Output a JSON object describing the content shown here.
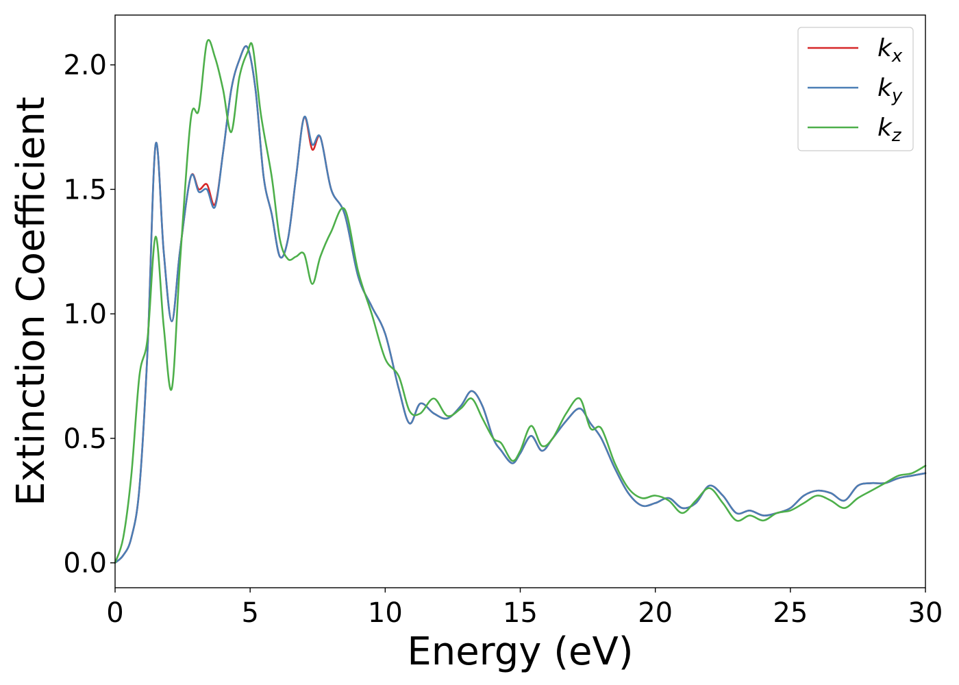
{
  "chart_data": {
    "type": "line",
    "title": "",
    "xlabel": "Energy (eV)",
    "ylabel": "Extinction Coefficient",
    "xlim": [
      0,
      30
    ],
    "ylim": [
      -0.1,
      2.2
    ],
    "xticks": [
      0,
      5,
      10,
      15,
      20,
      25,
      30
    ],
    "yticks": [
      0.0,
      0.5,
      1.0,
      1.5,
      2.0
    ],
    "xtick_labels": [
      "0",
      "5",
      "10",
      "15",
      "20",
      "25",
      "30"
    ],
    "ytick_labels": [
      "0.0",
      "0.5",
      "1.0",
      "1.5",
      "2.0"
    ],
    "grid": false,
    "legend_position": "top-right",
    "series": [
      {
        "name": "k_x",
        "label_main": "k",
        "label_sub": "x",
        "color": "#d62728",
        "x": [
          0,
          0.3,
          0.6,
          0.9,
          1.2,
          1.5,
          1.8,
          2.1,
          2.4,
          2.8,
          3.1,
          3.4,
          3.7,
          4.0,
          4.3,
          4.6,
          4.9,
          5.2,
          5.5,
          5.8,
          6.1,
          6.4,
          6.7,
          7.0,
          7.3,
          7.6,
          8.0,
          8.5,
          9.0,
          9.5,
          10.0,
          10.5,
          10.9,
          11.3,
          11.8,
          12.3,
          12.8,
          13.2,
          13.6,
          14.0,
          14.3,
          14.7,
          15.0,
          15.4,
          15.8,
          16.2,
          16.7,
          17.2,
          17.6,
          18.0,
          18.5,
          19.0,
          19.5,
          20.0,
          20.5,
          21.0,
          21.5,
          22.0,
          22.5,
          23.0,
          23.5,
          24.0,
          24.5,
          25.0,
          25.5,
          26.0,
          26.5,
          27.0,
          27.5,
          28.0,
          28.5,
          29.0,
          29.5,
          30.0
        ],
        "y": [
          0.0,
          0.03,
          0.1,
          0.3,
          0.85,
          1.68,
          1.25,
          0.97,
          1.25,
          1.55,
          1.5,
          1.52,
          1.44,
          1.65,
          1.9,
          2.02,
          2.07,
          1.9,
          1.55,
          1.4,
          1.23,
          1.3,
          1.55,
          1.79,
          1.66,
          1.71,
          1.5,
          1.4,
          1.15,
          1.03,
          0.92,
          0.7,
          0.56,
          0.64,
          0.6,
          0.58,
          0.63,
          0.69,
          0.63,
          0.5,
          0.45,
          0.4,
          0.44,
          0.51,
          0.45,
          0.5,
          0.57,
          0.62,
          0.56,
          0.5,
          0.38,
          0.28,
          0.23,
          0.24,
          0.26,
          0.22,
          0.24,
          0.31,
          0.27,
          0.2,
          0.21,
          0.19,
          0.2,
          0.22,
          0.27,
          0.29,
          0.28,
          0.25,
          0.31,
          0.32,
          0.32,
          0.34,
          0.35,
          0.36
        ]
      },
      {
        "name": "k_y",
        "label_main": "k",
        "label_sub": "y",
        "color": "#4a7eb5",
        "x": [
          0,
          0.3,
          0.6,
          0.9,
          1.2,
          1.5,
          1.8,
          2.1,
          2.4,
          2.8,
          3.1,
          3.4,
          3.7,
          4.0,
          4.3,
          4.6,
          4.9,
          5.2,
          5.5,
          5.8,
          6.1,
          6.4,
          6.7,
          7.0,
          7.3,
          7.6,
          8.0,
          8.5,
          9.0,
          9.5,
          10.0,
          10.5,
          10.9,
          11.3,
          11.8,
          12.3,
          12.8,
          13.2,
          13.6,
          14.0,
          14.3,
          14.7,
          15.0,
          15.4,
          15.8,
          16.2,
          16.7,
          17.2,
          17.6,
          18.0,
          18.5,
          19.0,
          19.5,
          20.0,
          20.5,
          21.0,
          21.5,
          22.0,
          22.5,
          23.0,
          23.5,
          24.0,
          24.5,
          25.0,
          25.5,
          26.0,
          26.5,
          27.0,
          27.5,
          28.0,
          28.5,
          29.0,
          29.5,
          30.0
        ],
        "y": [
          0.0,
          0.03,
          0.1,
          0.3,
          0.85,
          1.68,
          1.25,
          0.97,
          1.25,
          1.55,
          1.49,
          1.5,
          1.43,
          1.65,
          1.9,
          2.02,
          2.07,
          1.9,
          1.55,
          1.4,
          1.23,
          1.3,
          1.55,
          1.79,
          1.68,
          1.71,
          1.5,
          1.4,
          1.15,
          1.03,
          0.92,
          0.7,
          0.56,
          0.64,
          0.6,
          0.58,
          0.63,
          0.69,
          0.63,
          0.5,
          0.45,
          0.4,
          0.44,
          0.51,
          0.45,
          0.5,
          0.57,
          0.62,
          0.56,
          0.5,
          0.38,
          0.28,
          0.23,
          0.24,
          0.26,
          0.22,
          0.24,
          0.31,
          0.27,
          0.2,
          0.21,
          0.19,
          0.2,
          0.22,
          0.27,
          0.29,
          0.28,
          0.25,
          0.31,
          0.32,
          0.32,
          0.34,
          0.35,
          0.36
        ]
      },
      {
        "name": "k_z",
        "label_main": "k",
        "label_sub": "z",
        "color": "#4daf4a",
        "x": [
          0,
          0.3,
          0.6,
          0.9,
          1.2,
          1.5,
          1.8,
          2.1,
          2.4,
          2.8,
          3.1,
          3.4,
          3.7,
          4.0,
          4.3,
          4.6,
          4.9,
          5.1,
          5.4,
          5.8,
          6.1,
          6.4,
          6.7,
          7.0,
          7.3,
          7.6,
          8.0,
          8.5,
          9.0,
          9.5,
          10.0,
          10.5,
          10.9,
          11.3,
          11.8,
          12.3,
          12.8,
          13.2,
          13.6,
          14.0,
          14.3,
          14.7,
          15.0,
          15.4,
          15.8,
          16.2,
          16.7,
          17.2,
          17.6,
          18.0,
          18.5,
          19.0,
          19.5,
          20.0,
          20.5,
          21.0,
          21.5,
          22.0,
          22.5,
          23.0,
          23.5,
          24.0,
          24.5,
          25.0,
          25.5,
          26.0,
          26.5,
          27.0,
          27.5,
          28.0,
          28.5,
          29.0,
          29.5,
          30.0
        ],
        "y": [
          0.0,
          0.1,
          0.35,
          0.75,
          0.9,
          1.31,
          0.95,
          0.7,
          1.2,
          1.78,
          1.82,
          2.09,
          2.03,
          1.9,
          1.73,
          1.95,
          2.05,
          2.07,
          1.8,
          1.55,
          1.3,
          1.22,
          1.23,
          1.24,
          1.12,
          1.23,
          1.33,
          1.42,
          1.17,
          1.0,
          0.82,
          0.75,
          0.61,
          0.6,
          0.66,
          0.59,
          0.62,
          0.66,
          0.58,
          0.5,
          0.48,
          0.41,
          0.45,
          0.55,
          0.47,
          0.5,
          0.6,
          0.66,
          0.54,
          0.54,
          0.4,
          0.3,
          0.26,
          0.27,
          0.25,
          0.2,
          0.25,
          0.3,
          0.24,
          0.17,
          0.19,
          0.17,
          0.2,
          0.21,
          0.24,
          0.27,
          0.25,
          0.22,
          0.26,
          0.29,
          0.32,
          0.35,
          0.36,
          0.39
        ]
      }
    ]
  }
}
